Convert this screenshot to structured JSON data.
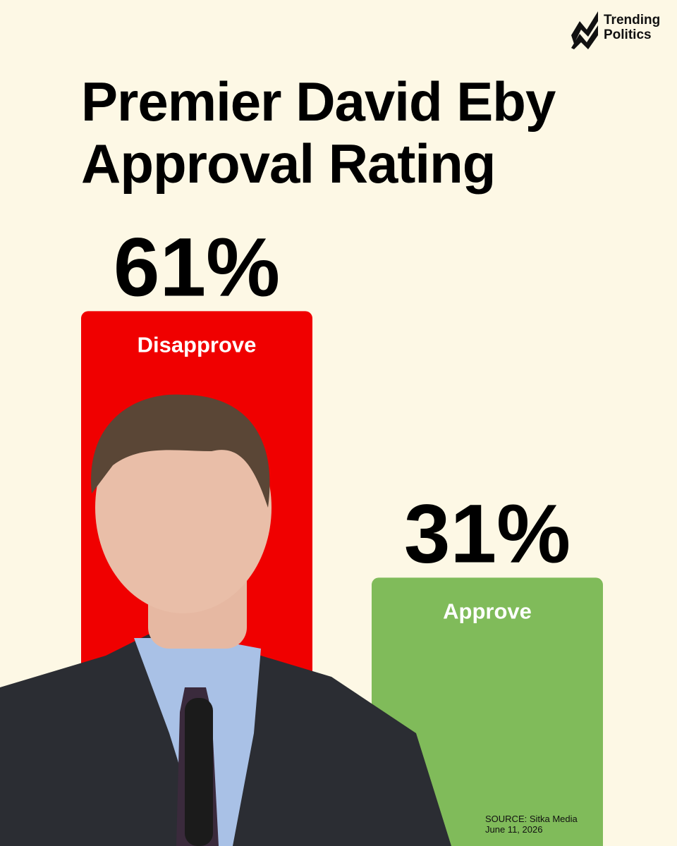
{
  "brand": "Trending Politics",
  "chart_data": {
    "type": "bar",
    "title": "Premier David Eby Approval Rating",
    "categories": [
      "Disapprove",
      "Approve"
    ],
    "values": [
      61,
      31
    ],
    "value_labels": [
      "61%",
      "31%"
    ],
    "colors": [
      "#f00000",
      "#80bb5a"
    ],
    "source": "SOURCE: Sitka Media",
    "date": "June 11, 2026"
  }
}
